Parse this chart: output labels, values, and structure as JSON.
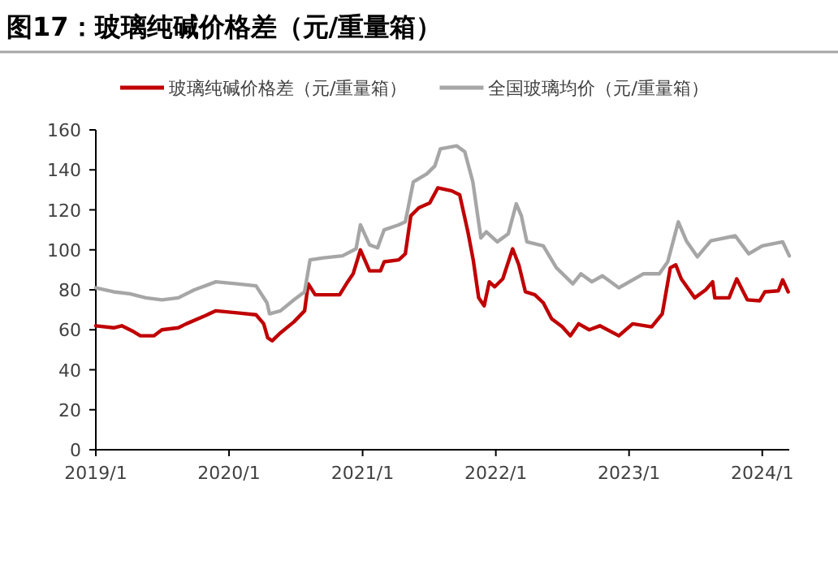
{
  "chart_data": {
    "type": "line",
    "title": "图17：玻璃纯碱价格差（元/重量箱）",
    "xlim": [
      "2019-01-01",
      "2024-03-15"
    ],
    "xticks": [
      {
        "value": "2019-01-01",
        "label": "2019/1"
      },
      {
        "value": "2020-01-01",
        "label": "2020/1"
      },
      {
        "value": "2021-01-01",
        "label": "2021/1"
      },
      {
        "value": "2022-01-01",
        "label": "2022/1"
      },
      {
        "value": "2023-01-01",
        "label": "2023/1"
      },
      {
        "value": "2024-01-01",
        "label": "2024/1"
      }
    ],
    "ylim": [
      0,
      160
    ],
    "yticks": [
      0,
      20,
      40,
      60,
      80,
      100,
      120,
      140,
      160
    ],
    "grid": false,
    "legend": "top",
    "marker": "none",
    "line_style": "solid",
    "series": [
      {
        "name": "玻璃纯碱价格差（元/重量箱）",
        "color": "#c00000",
        "x": [
          "2019-01-01",
          "2019-02-19",
          "2019-03-13",
          "2019-04-10",
          "2019-05-03",
          "2019-06-09",
          "2019-07-01",
          "2019-08-15",
          "2019-09-06",
          "2019-10-27",
          "2019-11-26",
          "2020-01-23",
          "2020-03-15",
          "2020-04-05",
          "2020-04-16",
          "2020-04-28",
          "2020-05-21",
          "2020-06-27",
          "2020-07-26",
          "2020-08-05",
          "2020-08-24",
          "2020-10-30",
          "2020-11-21",
          "2020-12-06",
          "2020-12-26",
          "2021-01-20",
          "2021-02-19",
          "2021-03-01",
          "2021-04-10",
          "2021-04-28",
          "2021-05-13",
          "2021-06-04",
          "2021-07-04",
          "2021-07-26",
          "2021-09-02",
          "2021-09-24",
          "2021-10-17",
          "2021-10-31",
          "2021-11-15",
          "2021-11-30",
          "2021-12-14",
          "2021-12-29",
          "2022-01-20",
          "2022-02-16",
          "2022-03-05",
          "2022-03-23",
          "2022-04-18",
          "2022-05-11",
          "2022-06-03",
          "2022-07-02",
          "2022-07-24",
          "2022-08-16",
          "2022-09-14",
          "2022-10-13",
          "2022-12-04",
          "2023-01-11",
          "2023-03-04",
          "2023-04-02",
          "2023-04-24",
          "2023-05-09",
          "2023-05-24",
          "2023-06-30",
          "2023-07-30",
          "2023-08-18",
          "2023-08-24",
          "2023-10-02",
          "2023-10-23",
          "2023-11-21",
          "2023-12-25",
          "2024-01-08",
          "2024-02-14",
          "2024-02-26",
          "2024-03-12"
        ],
        "values": [
          62,
          61,
          62,
          59.5,
          57,
          57,
          60,
          61,
          63,
          67,
          69.5,
          68.5,
          67.5,
          63,
          56,
          54.5,
          58.5,
          64,
          69.5,
          83,
          77.5,
          77.5,
          84,
          88,
          100,
          89.5,
          89.5,
          94,
          95,
          98,
          117,
          121,
          123.5,
          131,
          129.5,
          127.5,
          108.5,
          95,
          76,
          72,
          84,
          81.5,
          85.5,
          100.5,
          92.5,
          79,
          77.5,
          73.5,
          65.5,
          61.5,
          57,
          63,
          60,
          62,
          57,
          63,
          61.5,
          68,
          91,
          92.5,
          85.5,
          76,
          80,
          84,
          76,
          76,
          85.5,
          75,
          74.5,
          79,
          79.5,
          85,
          79
        ]
      },
      {
        "name": "全国玻璃均价（元/重量箱）",
        "color": "#a6a6a6",
        "x": [
          "2019-01-01",
          "2019-02-19",
          "2019-04-04",
          "2019-05-18",
          "2019-07-01",
          "2019-08-15",
          "2019-09-28",
          "2019-11-26",
          "2020-01-23",
          "2020-03-15",
          "2020-04-14",
          "2020-04-21",
          "2020-05-21",
          "2020-06-27",
          "2020-07-26",
          "2020-08-10",
          "2020-09-16",
          "2020-11-07",
          "2020-12-14",
          "2020-12-26",
          "2021-01-20",
          "2021-02-11",
          "2021-03-01",
          "2021-04-10",
          "2021-04-28",
          "2021-05-20",
          "2021-06-26",
          "2021-07-18",
          "2021-08-02",
          "2021-09-16",
          "2021-10-08",
          "2021-10-30",
          "2021-11-21",
          "2021-12-06",
          "2022-01-05",
          "2022-02-04",
          "2022-02-26",
          "2022-03-12",
          "2022-03-27",
          "2022-05-11",
          "2022-06-16",
          "2022-07-31",
          "2022-08-22",
          "2022-09-21",
          "2022-10-20",
          "2022-12-04",
          "2023-02-09",
          "2023-03-25",
          "2023-04-17",
          "2023-05-16",
          "2023-06-07",
          "2023-07-07",
          "2023-08-13",
          "2023-10-19",
          "2023-11-25",
          "2024-01-01",
          "2024-02-26",
          "2024-03-15"
        ],
        "values": [
          81,
          79,
          78,
          76,
          75,
          76,
          80,
          84,
          83,
          82,
          73.5,
          68,
          69.5,
          75,
          79,
          95,
          96,
          97,
          100.5,
          112.5,
          102.5,
          101,
          110,
          112.5,
          114,
          134,
          138,
          142,
          150.5,
          152,
          149,
          134,
          106,
          109,
          104,
          108,
          123,
          117,
          104,
          102,
          91,
          83,
          88,
          84,
          87,
          81,
          88,
          88,
          94,
          114,
          104.5,
          96.5,
          104.5,
          107,
          98,
          102,
          104,
          97
        ]
      }
    ]
  }
}
